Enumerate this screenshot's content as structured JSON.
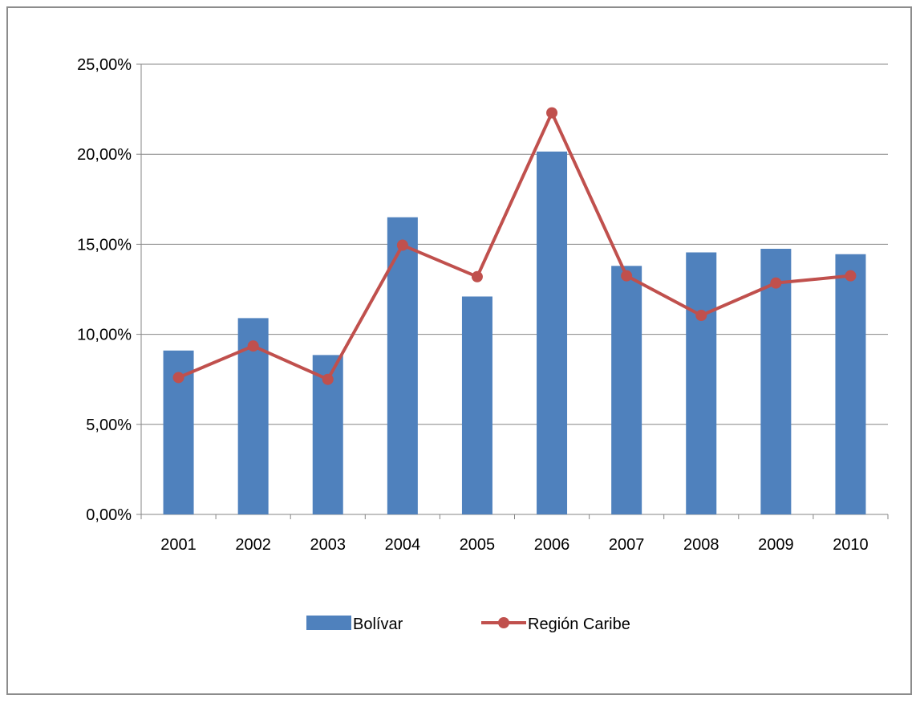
{
  "chart_data": {
    "type": "bar",
    "categories": [
      "2001",
      "2002",
      "2003",
      "2004",
      "2005",
      "2006",
      "2007",
      "2008",
      "2009",
      "2010"
    ],
    "series": [
      {
        "name": "Bolívar",
        "type": "bar",
        "color": "#4f81bd",
        "values": [
          9.1,
          10.9,
          8.85,
          16.5,
          12.1,
          20.15,
          13.8,
          14.55,
          14.75,
          14.45
        ]
      },
      {
        "name": "Región Caribe",
        "type": "line",
        "color": "#c0504d",
        "values": [
          7.6,
          9.35,
          7.5,
          14.95,
          13.2,
          22.3,
          13.25,
          11.05,
          12.85,
          13.25
        ]
      }
    ],
    "y_ticks": [
      "0,00%",
      "5,00%",
      "10,00%",
      "15,00%",
      "20,00%",
      "25,00%"
    ],
    "ylim": [
      0,
      25
    ],
    "grid": true,
    "legend_position": "bottom"
  }
}
